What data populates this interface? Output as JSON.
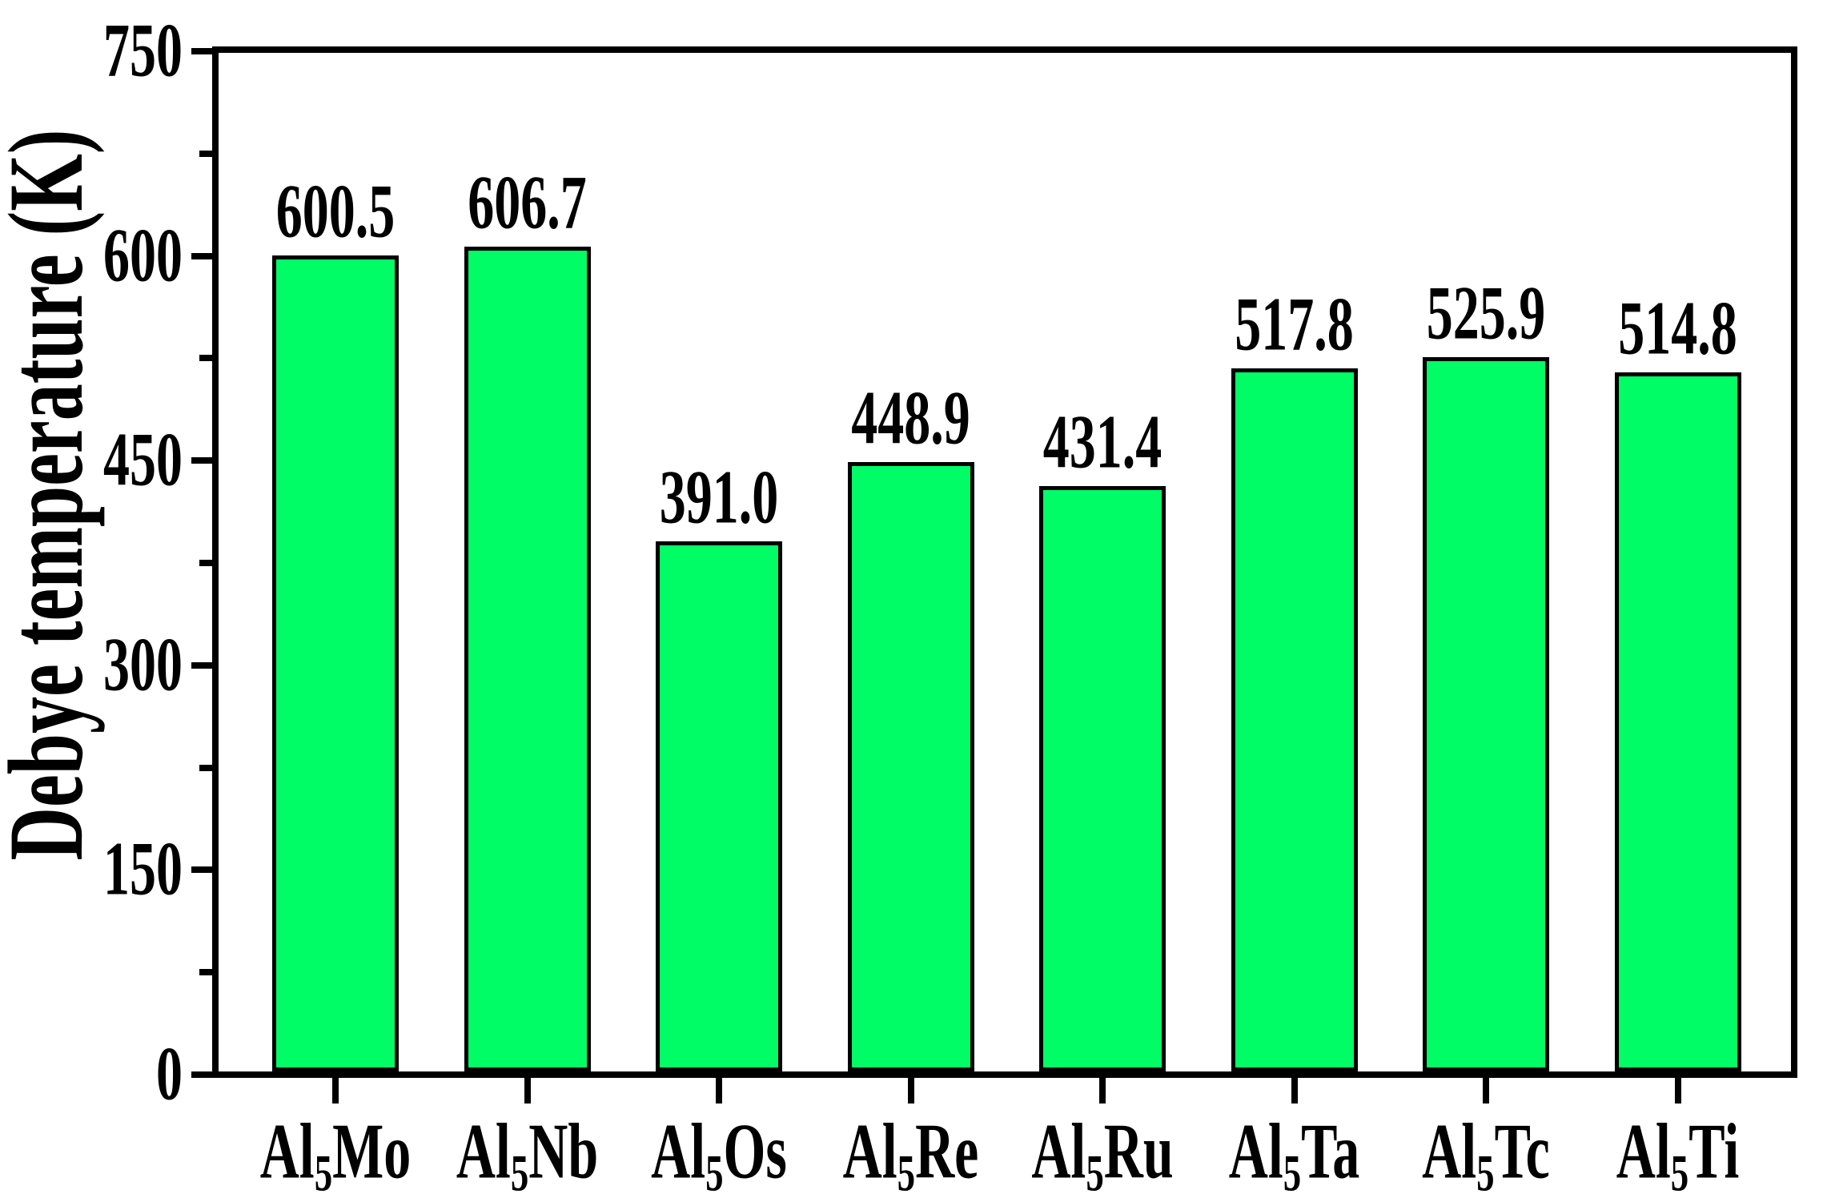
{
  "chart_data": {
    "type": "bar",
    "title": "",
    "ylabel": "Debye temperature (K)",
    "xlabel": "",
    "ylim": [
      0,
      750
    ],
    "yticks": [
      0,
      150,
      300,
      450,
      600,
      750
    ],
    "minor_yticks": [
      75,
      225,
      375,
      525,
      675
    ],
    "categories": [
      {
        "prefix": "Al",
        "sub": "5",
        "suffix": "Mo"
      },
      {
        "prefix": "Al",
        "sub": "5",
        "suffix": "Nb"
      },
      {
        "prefix": "Al",
        "sub": "5",
        "suffix": "Os"
      },
      {
        "prefix": "Al",
        "sub": "5",
        "suffix": "Re"
      },
      {
        "prefix": "Al",
        "sub": "5",
        "suffix": "Ru"
      },
      {
        "prefix": "Al",
        "sub": "5",
        "suffix": "Ta"
      },
      {
        "prefix": "Al",
        "sub": "5",
        "suffix": "Tc"
      },
      {
        "prefix": "Al",
        "sub": "5",
        "suffix": "Ti"
      }
    ],
    "values": [
      600.5,
      606.7,
      391.0,
      448.9,
      431.4,
      517.8,
      525.9,
      514.8
    ],
    "value_labels": [
      "600.5",
      "606.7",
      "391.0",
      "448.9",
      "431.4",
      "517.8",
      "525.9",
      "514.8"
    ],
    "legend": null,
    "grid": false,
    "colors": {
      "bar_fill": "#00FD66",
      "bar_border": "#000000",
      "axis": "#000000",
      "text": "#000000",
      "background": "#FFFFFF"
    }
  }
}
